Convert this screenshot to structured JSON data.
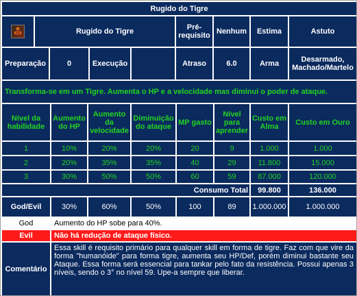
{
  "title": "Rugido do Tigre",
  "header": {
    "icon": "tiger-icon",
    "name": "Rugido do Tigre",
    "prerequisito_label": "Pré-requisito",
    "prerequisito_value": "Nenhum",
    "estima": "Estima",
    "astuto": "Astuto"
  },
  "info": {
    "preparacao_label": "Preparação",
    "preparacao_value": "0",
    "execucao_label": "Execução",
    "execucao_value": "",
    "atraso_label": "Atraso",
    "atraso_value": "6.0",
    "arma_label": "Arma",
    "arma_value": "Desarmado, Machado/Martelo"
  },
  "summary": "Transforma-se em um Tigre. Aumenta o HP e a velocidade mas diminui o poder de ataque.",
  "table": {
    "headers": [
      "Nível da habilidade",
      "Aumento do HP",
      "Aumento da velocidade",
      "Diminuição do ataque",
      "MP gasto",
      "Nível para aprender",
      "Custo em Alma",
      "Custo em Ouro"
    ],
    "rows": [
      [
        "1",
        "10%",
        "20%",
        "20%",
        "20",
        "9",
        "1.000",
        "1.000"
      ],
      [
        "2",
        "20%",
        "35%",
        "35%",
        "40",
        "29",
        "11.800",
        "15.000"
      ],
      [
        "3",
        "30%",
        "50%",
        "50%",
        "60",
        "59",
        "87.000",
        "120.000"
      ]
    ],
    "total_label": "Consumo Total",
    "total_alma": "99.800",
    "total_ouro": "136.000"
  },
  "godevil": {
    "label": "God/Evil",
    "values": [
      "30%",
      "60%",
      "50%",
      "100",
      "89",
      "1.000.000",
      "1.000.000"
    ]
  },
  "god": {
    "label": "God",
    "text": "Aumento do HP sobe para 40%."
  },
  "evil": {
    "label": "Evil",
    "text": "Não há redução de ataque físico."
  },
  "comentario": {
    "label": "Comentário",
    "text": "Essa skill é requisito primário para qualquer skill em forma de tigre. Faz com que vire da forma \"humanóide\" para forma tigre, aumenta seu HP/Def, porém diminui bastante seu Ataque. Essa forma será essencial para tankar pelo fato da resistência. Possui apenas 3 níveis, sendo o 3° no nível 59. Upe-a sempre que liberar."
  },
  "colors": {
    "header_bg": "#0b2a5e",
    "green_text": "#22d422",
    "evil_bg": "#ff1a1a"
  }
}
